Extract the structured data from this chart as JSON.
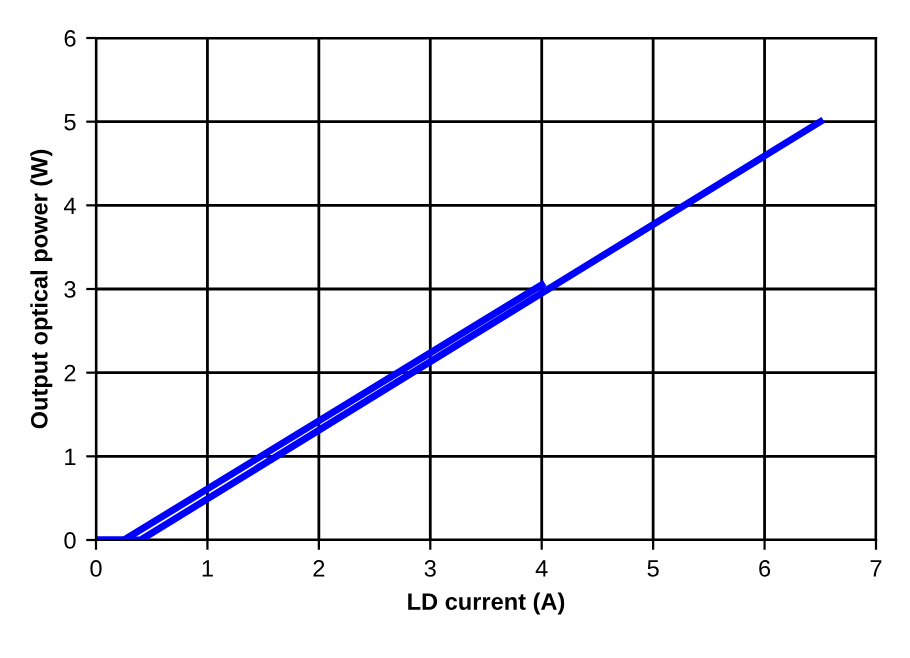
{
  "chart_data": {
    "type": "line",
    "xlabel": "LD current (A)",
    "ylabel": "Output optical power (W)",
    "series": [
      {
        "color": "#0000ff",
        "x": [
          0,
          0.4,
          6.5
        ],
        "values": [
          0,
          0,
          5.0
        ]
      },
      {
        "color": "#0000ff",
        "x": [
          0,
          0.25,
          4.0
        ],
        "values": [
          0,
          0,
          3.05
        ]
      }
    ],
    "xlim": [
      0,
      7
    ],
    "xticks": [
      0,
      1,
      2,
      3,
      4,
      5,
      6,
      7
    ],
    "ylim": [
      0,
      6
    ],
    "yticks": [
      0,
      1,
      2,
      3,
      4,
      5,
      6
    ],
    "grid": true,
    "marker": "none",
    "line_style": "solid"
  }
}
